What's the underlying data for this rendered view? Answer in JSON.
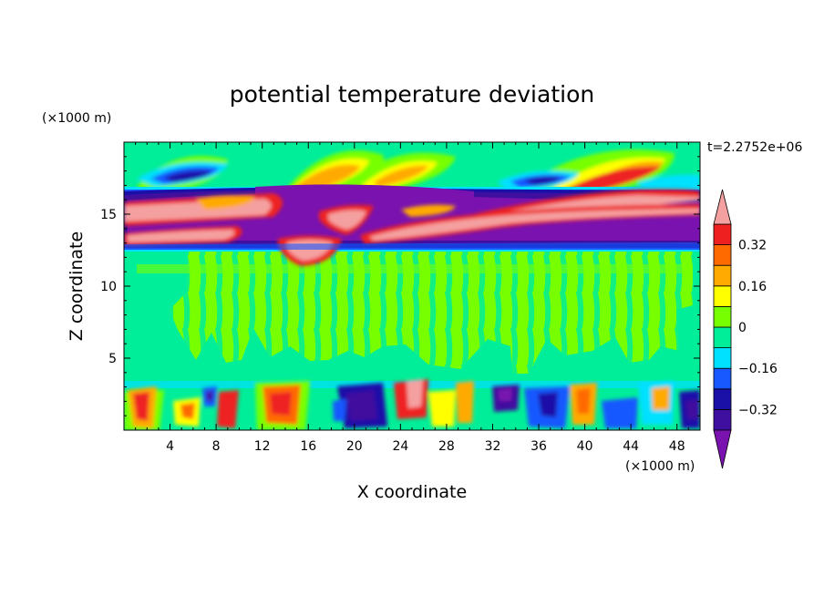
{
  "chart_data": {
    "type": "heatmap",
    "title": "potential temperature deviation",
    "xlabel": "X coordinate",
    "ylabel": "Z coordinate",
    "x_unit": "(×1000 m)",
    "y_unit": "(×1000 m)",
    "time_label": "t=2.2752e+06",
    "xlim": [
      0,
      50
    ],
    "ylim": [
      0,
      20
    ],
    "x_ticks": [
      4,
      8,
      12,
      16,
      20,
      24,
      28,
      32,
      36,
      40,
      44,
      48
    ],
    "x_tick_labels": [
      "4",
      "8",
      "12",
      "16",
      "20",
      "24",
      "28",
      "32",
      "36",
      "40",
      "44",
      "48"
    ],
    "y_ticks": [
      5,
      10,
      15
    ],
    "y_tick_labels": [
      "5",
      "10",
      "15"
    ],
    "colorbar": {
      "levels": [
        -0.4,
        -0.32,
        -0.24,
        -0.16,
        -0.08,
        0,
        0.08,
        0.16,
        0.24,
        0.32,
        0.4
      ],
      "tick_values": [
        0.32,
        0.16,
        0,
        -0.16,
        -0.32
      ],
      "tick_labels": [
        "0.32",
        "0.16",
        "0",
        "−0.16",
        "−0.32"
      ],
      "colors_low_to_high": [
        "#3f0f9f",
        "#1a10a8",
        "#1758ff",
        "#00e0ff",
        "#00ee99",
        "#77ff00",
        "#ffff00",
        "#ffaa00",
        "#ff6a00",
        "#ee2020"
      ],
      "under_color": "#7a12b0",
      "over_color": "#f5a0a0"
    },
    "bands": [
      {
        "z_range": [
          0,
          3.6
        ],
        "description_level": "mixed",
        "levels_present": [
          -0.4,
          -0.32,
          -0.16,
          0,
          0.16,
          0.32,
          0.4
        ]
      },
      {
        "z_range": [
          3.6,
          12.5
        ],
        "levels_present": [
          -0.08,
          0
        ]
      },
      {
        "z_range": [
          12.5,
          17.8
        ],
        "levels_present": [
          -0.4,
          -0.32,
          0.4
        ]
      },
      {
        "z_range": [
          17.8,
          20
        ],
        "levels_present": [
          -0.32,
          -0.16,
          0,
          0.16,
          0.32
        ]
      }
    ],
    "grid": false,
    "legend": "colorbar-right"
  }
}
